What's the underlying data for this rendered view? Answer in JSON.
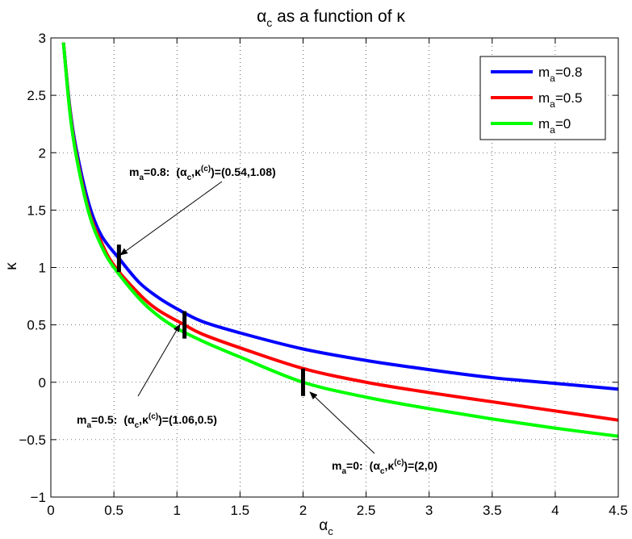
{
  "chart_data": {
    "type": "line",
    "title": {
      "main": "α",
      "sub": "c",
      "rest": " as a function of κ"
    },
    "xlabel": {
      "main": "α",
      "sub": "c"
    },
    "ylabel": "κ",
    "xlim": [
      0,
      4.5
    ],
    "ylim": [
      -1,
      3
    ],
    "xticks": [
      0,
      0.5,
      1,
      1.5,
      2,
      2.5,
      3,
      3.5,
      4,
      4.5
    ],
    "xtick_labels": [
      "0",
      "0.5",
      "1",
      "1.5",
      "2",
      "2.5",
      "3",
      "3.5",
      "4",
      "4.5"
    ],
    "yticks": [
      -1,
      -0.5,
      0,
      0.5,
      1,
      1.5,
      2,
      2.5,
      3
    ],
    "ytick_labels": [
      "−1",
      "−0.5",
      "0",
      "0.5",
      "1",
      "1.5",
      "2",
      "2.5",
      "3"
    ],
    "grid": true,
    "legend_position": "top-right",
    "series": [
      {
        "name": "m_a=0.8",
        "legend": {
          "main": "m",
          "sub": "a",
          "rest": "=0.8"
        },
        "color": "#0000ff",
        "x": [
          0.1,
          0.15,
          0.2,
          0.3,
          0.4,
          0.54,
          0.7,
          0.85,
          1.0,
          1.2,
          1.5,
          2.0,
          2.5,
          3.0,
          3.5,
          4.0,
          4.5
        ],
        "y": [
          2.96,
          2.4,
          2.04,
          1.56,
          1.28,
          1.08,
          0.87,
          0.74,
          0.64,
          0.53,
          0.43,
          0.29,
          0.19,
          0.11,
          0.04,
          -0.01,
          -0.06
        ]
      },
      {
        "name": "m_a=0.5",
        "legend": {
          "main": "m",
          "sub": "a",
          "rest": "=0.5"
        },
        "color": "#ff0000",
        "x": [
          0.1,
          0.15,
          0.2,
          0.3,
          0.4,
          0.5,
          0.7,
          0.85,
          1.06,
          1.2,
          1.5,
          2.0,
          2.5,
          3.0,
          3.5,
          4.0,
          4.5
        ],
        "y": [
          2.96,
          2.38,
          2.0,
          1.5,
          1.22,
          1.02,
          0.77,
          0.63,
          0.5,
          0.42,
          0.3,
          0.12,
          0.0,
          -0.09,
          -0.17,
          -0.25,
          -0.33
        ]
      },
      {
        "name": "m_a=0",
        "legend": {
          "main": "m",
          "sub": "a",
          "rest": "=0"
        },
        "color": "#00ff00",
        "x": [
          0.1,
          0.15,
          0.2,
          0.3,
          0.4,
          0.5,
          0.7,
          0.85,
          1.0,
          1.2,
          1.5,
          2.0,
          2.5,
          3.0,
          3.5,
          4.0,
          4.5
        ],
        "y": [
          2.96,
          2.36,
          1.98,
          1.48,
          1.19,
          1.0,
          0.73,
          0.58,
          0.47,
          0.36,
          0.22,
          0.0,
          -0.13,
          -0.23,
          -0.32,
          -0.4,
          -0.47
        ]
      }
    ],
    "markers": [
      {
        "x": 0.54,
        "y": 1.08
      },
      {
        "x": 1.06,
        "y": 0.5
      },
      {
        "x": 2.0,
        "y": 0.0
      }
    ],
    "annotations": [
      {
        "m_main": "m",
        "m_sub": "a",
        "m_val": "=0.8:",
        "alpha": "α",
        "alpha_sub": "c",
        "kappa": "κ",
        "kappa_sup": "(c)",
        "value": ")=(0.54,1.08)"
      },
      {
        "m_main": "m",
        "m_sub": "a",
        "m_val": "=0.5:",
        "alpha": "α",
        "alpha_sub": "c",
        "kappa": "κ",
        "kappa_sup": "(c)",
        "value": ")=(1.06,0.5)"
      },
      {
        "m_main": "m",
        "m_sub": "a",
        "m_val": "=0:",
        "alpha": "α",
        "alpha_sub": "c",
        "kappa": "κ",
        "kappa_sup": "(c)",
        "value": ")=(2,0)"
      }
    ]
  }
}
